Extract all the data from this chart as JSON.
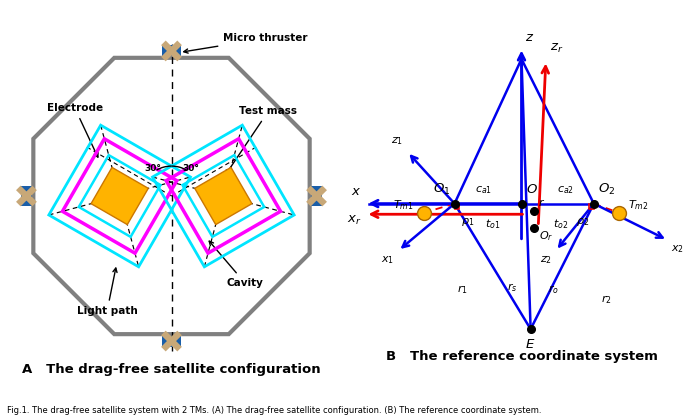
{
  "fig_width": 7.0,
  "fig_height": 4.17,
  "dpi": 100,
  "bg_color": "#ffffff",
  "title_A": "A   The drag-free satellite configuration",
  "title_B": "B   The reference coordinate system",
  "caption": "Fig.1. The drag-free satellite system with 2 TMs. (A) The drag-free satellite configuration. (B) The reference coordinate system.",
  "octagon_color": "#808080",
  "cyan_color": "#00E5FF",
  "magenta_color": "#FF00FF",
  "gold_color": "#FFA500",
  "gold_fill": "#FFB300",
  "blue_color": "#0000EE",
  "red_color": "#EE0000",
  "thruster_blue": "#1A5EA8",
  "thruster_tan": "#C8A878"
}
